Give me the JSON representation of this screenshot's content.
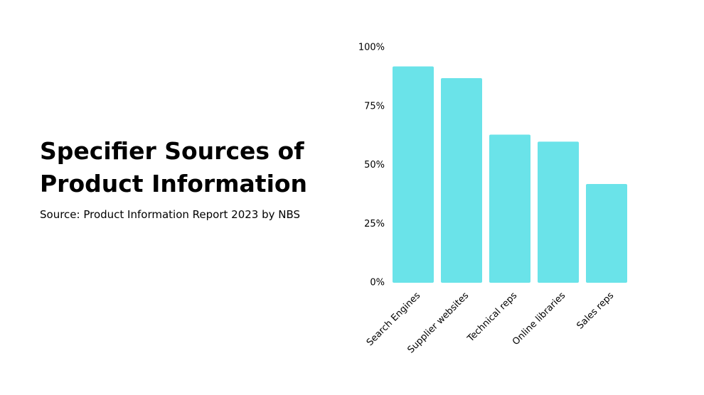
{
  "chart_data": {
    "type": "bar",
    "title": "Specifier Sources of Product Information",
    "subtitle": "Source: Product Information Report 2023 by NBS",
    "categories": [
      "Search Engines",
      "Supplier websites",
      "Technical reps",
      "Online libraries",
      "Sales reps"
    ],
    "values": [
      92,
      87,
      63,
      60,
      42
    ],
    "color": "#6ae3e9",
    "ylim": [
      0,
      100
    ],
    "yticks": [
      {
        "value": 0,
        "label": "0%"
      },
      {
        "value": 25,
        "label": "25%"
      },
      {
        "value": 50,
        "label": "50%"
      },
      {
        "value": 75,
        "label": "75%"
      },
      {
        "value": 100,
        "label": "100%"
      }
    ]
  }
}
